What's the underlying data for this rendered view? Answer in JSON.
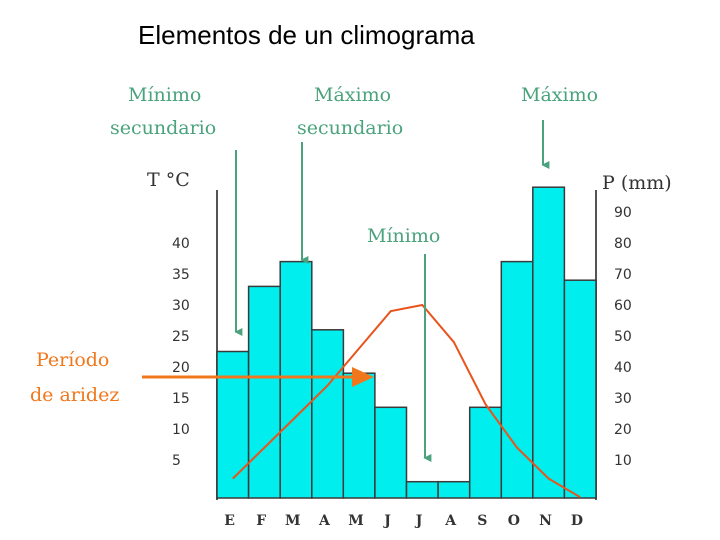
{
  "title": "Elementos de un climograma",
  "annotations": {
    "min_secundario": [
      "Mínimo",
      "secundario"
    ],
    "max_secundario": [
      "Máximo",
      "secundario"
    ],
    "maximo": "Máximo",
    "minimo": "Mínimo",
    "periodo_aridez": [
      "Período",
      "de aridez"
    ]
  },
  "colors": {
    "bars": "#00eeee",
    "temperature_line": "#e8541c",
    "annotation_green": "#4aa37c",
    "arrow_orange": "#f0771c"
  },
  "chart_data": {
    "type": "bar",
    "categories": [
      "E",
      "F",
      "M",
      "A",
      "M",
      "J",
      "J",
      "A",
      "S",
      "O",
      "N",
      "D"
    ],
    "series": [
      {
        "type": "bar",
        "axis": "right",
        "values": [
          45,
          66,
          74,
          52,
          38,
          27,
          3,
          3,
          27,
          74,
          98,
          68
        ]
      },
      {
        "type": "line",
        "axis": "left",
        "values": [
          2,
          7,
          12,
          17,
          23,
          29,
          30,
          24,
          14,
          7,
          2,
          -1
        ]
      }
    ],
    "left_axis": {
      "label": "T °C",
      "ticks": [
        5,
        10,
        15,
        20,
        25,
        30,
        35,
        40
      ]
    },
    "right_axis": {
      "label": "P (mm)",
      "ticks": [
        10,
        20,
        30,
        40,
        50,
        60,
        70,
        80,
        90
      ]
    },
    "ylim_right": [
      -20,
      200
    ],
    "grid": false
  }
}
